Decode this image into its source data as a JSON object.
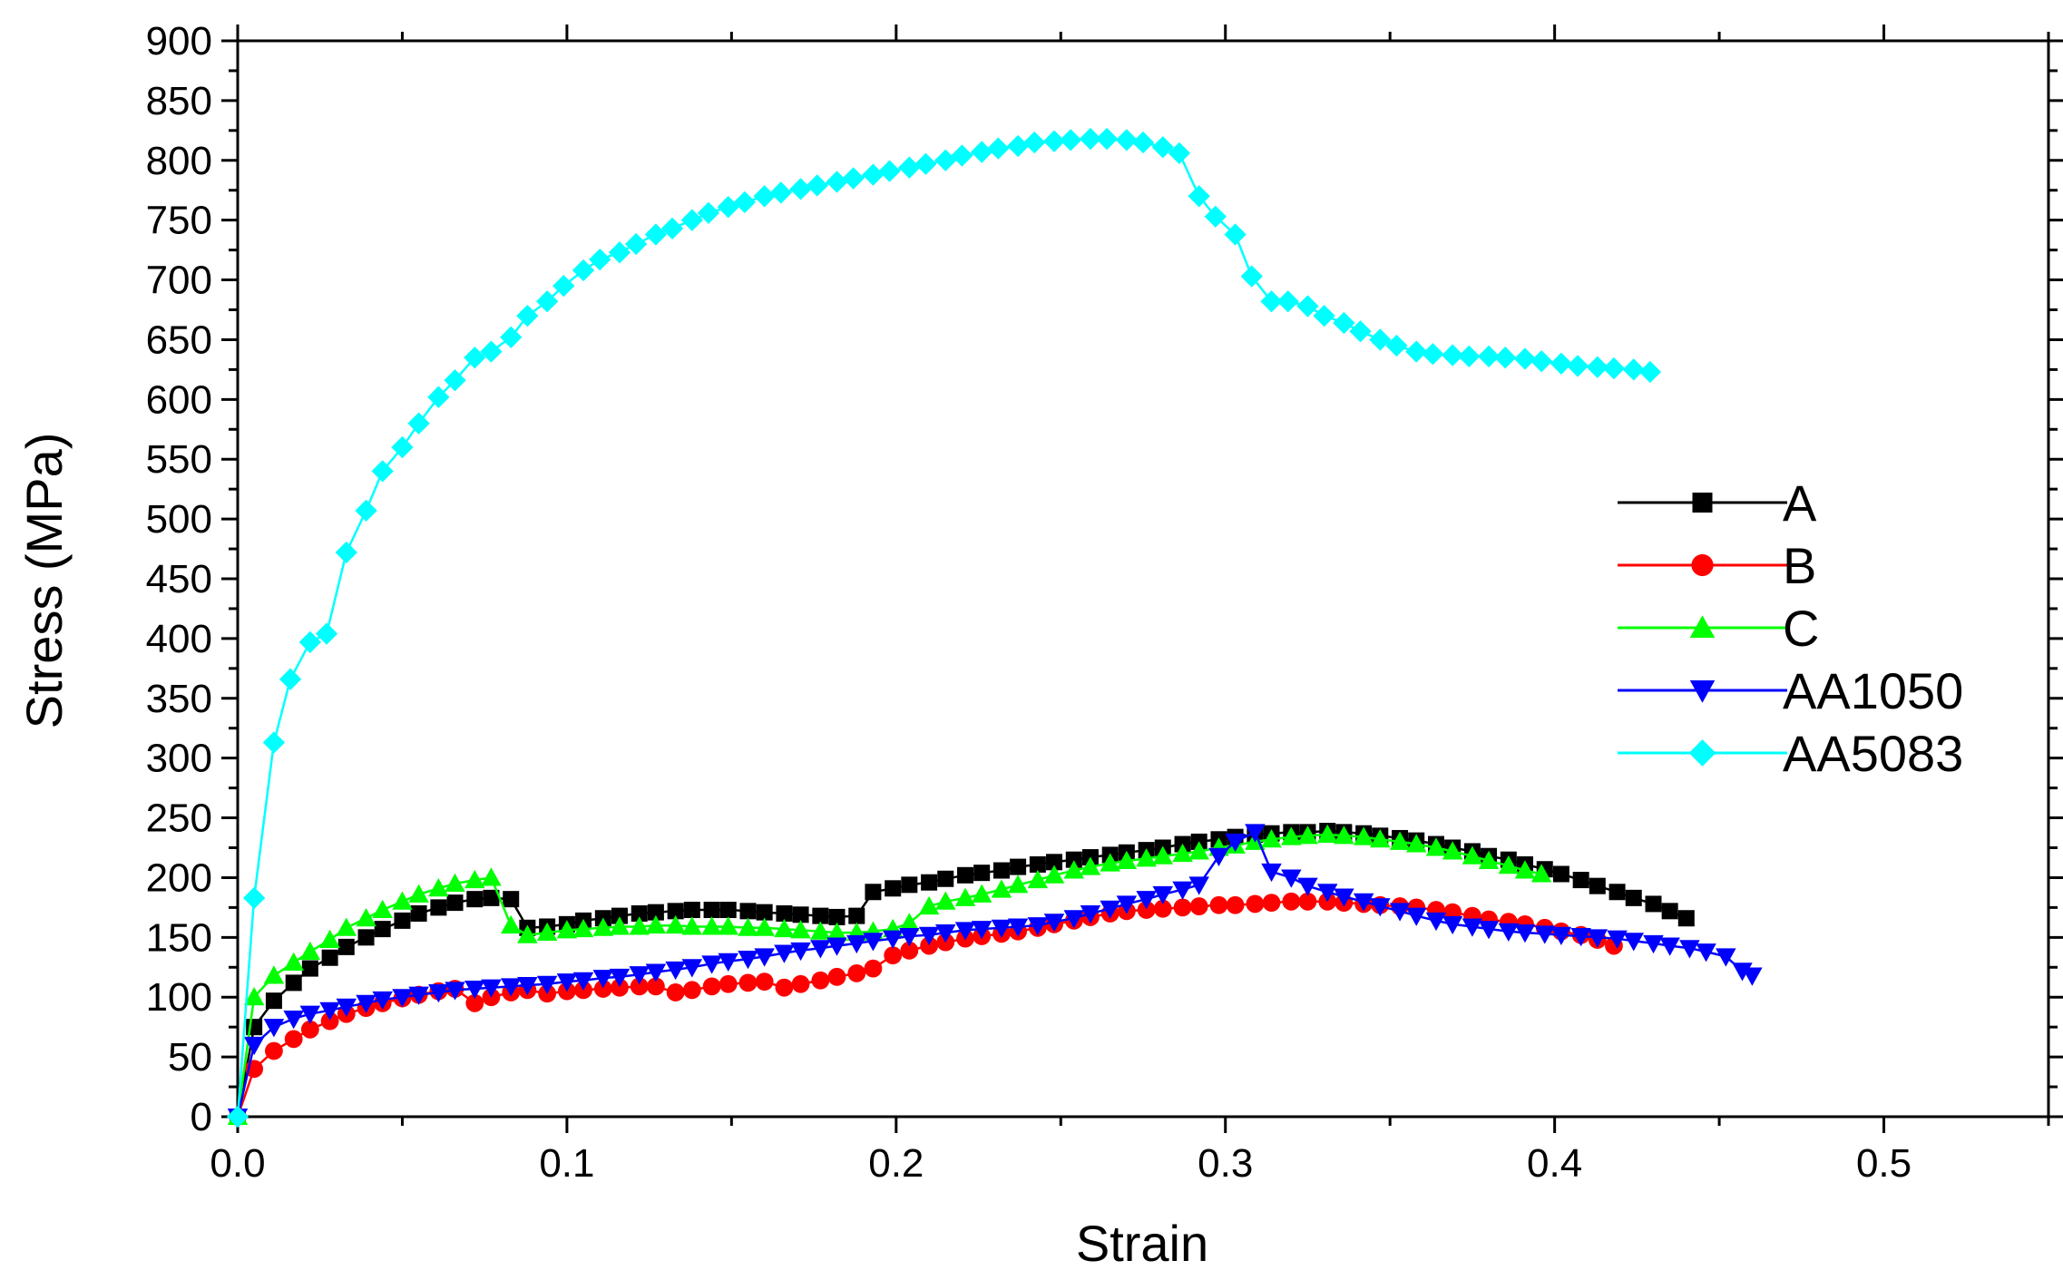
{
  "chart_data": {
    "type": "line",
    "title": "",
    "xlabel": "Strain",
    "ylabel": "Stress (MPa)",
    "xlim": [
      0,
      0.55
    ],
    "ylim": [
      0,
      900
    ],
    "x_ticks": [
      0.0,
      0.1,
      0.2,
      0.3,
      0.4,
      0.5
    ],
    "x_tick_labels": [
      "0.0",
      "0.1",
      "0.2",
      "0.3",
      "0.4",
      "0.5"
    ],
    "y_ticks": [
      0,
      50,
      100,
      150,
      200,
      250,
      300,
      350,
      400,
      450,
      500,
      550,
      600,
      650,
      700,
      750,
      800,
      850,
      900
    ],
    "y_tick_labels": [
      "0",
      "50",
      "100",
      "150",
      "200",
      "250",
      "300",
      "350",
      "400",
      "450",
      "500",
      "550",
      "600",
      "650",
      "700",
      "750",
      "800",
      "850",
      "900"
    ],
    "grid": false,
    "legend_position": "right",
    "series": [
      {
        "name": "A",
        "color": "#000000",
        "marker": "square",
        "x": [
          0,
          0.005,
          0.011,
          0.017,
          0.022,
          0.028,
          0.033,
          0.039,
          0.044,
          0.05,
          0.055,
          0.061,
          0.066,
          0.072,
          0.077,
          0.083,
          0.088,
          0.094,
          0.1,
          0.105,
          0.111,
          0.116,
          0.122,
          0.127,
          0.133,
          0.138,
          0.144,
          0.149,
          0.155,
          0.16,
          0.166,
          0.171,
          0.177,
          0.182,
          0.188,
          0.193,
          0.199,
          0.204,
          0.21,
          0.215,
          0.221,
          0.226,
          0.232,
          0.237,
          0.243,
          0.248,
          0.254,
          0.259,
          0.265,
          0.27,
          0.276,
          0.281,
          0.287,
          0.292,
          0.298,
          0.303,
          0.309,
          0.314,
          0.32,
          0.325,
          0.331,
          0.336,
          0.342,
          0.347,
          0.353,
          0.358,
          0.364,
          0.369,
          0.375,
          0.38,
          0.386,
          0.391,
          0.397,
          0.402,
          0.408,
          0.413,
          0.419,
          0.424,
          0.43,
          0.435,
          0.44
        ],
        "y": [
          0,
          75,
          97,
          112,
          124,
          133,
          142,
          150,
          157,
          164,
          170,
          175,
          179,
          182,
          183,
          182,
          158,
          159,
          161,
          164,
          166,
          168,
          170,
          171,
          172,
          173,
          173,
          173,
          172,
          171,
          170,
          169,
          168,
          167,
          168,
          188,
          191,
          194,
          196,
          199,
          202,
          204,
          206,
          209,
          211,
          213,
          215,
          217,
          219,
          221,
          223,
          225,
          228,
          230,
          232,
          234,
          236,
          237,
          238,
          238,
          239,
          238,
          237,
          235,
          233,
          231,
          228,
          225,
          222,
          218,
          215,
          211,
          207,
          203,
          198,
          193,
          188,
          183,
          178,
          172,
          166
        ]
      },
      {
        "name": "B",
        "color": "#ff0000",
        "marker": "circle",
        "x": [
          0,
          0.005,
          0.011,
          0.017,
          0.022,
          0.028,
          0.033,
          0.039,
          0.044,
          0.05,
          0.055,
          0.061,
          0.066,
          0.072,
          0.077,
          0.083,
          0.088,
          0.094,
          0.1,
          0.105,
          0.111,
          0.116,
          0.122,
          0.127,
          0.133,
          0.138,
          0.144,
          0.149,
          0.155,
          0.16,
          0.166,
          0.171,
          0.177,
          0.182,
          0.188,
          0.193,
          0.199,
          0.204,
          0.21,
          0.215,
          0.221,
          0.226,
          0.232,
          0.237,
          0.243,
          0.248,
          0.254,
          0.259,
          0.265,
          0.27,
          0.276,
          0.281,
          0.287,
          0.292,
          0.298,
          0.303,
          0.309,
          0.314,
          0.32,
          0.325,
          0.331,
          0.336,
          0.342,
          0.347,
          0.353,
          0.358,
          0.364,
          0.369,
          0.375,
          0.38,
          0.386,
          0.391,
          0.397,
          0.402,
          0.408,
          0.413,
          0.418
        ],
        "y": [
          0,
          40,
          55,
          65,
          73,
          80,
          86,
          91,
          95,
          99,
          102,
          105,
          107,
          95,
          100,
          104,
          106,
          103,
          105,
          106,
          107,
          108,
          109,
          109,
          104,
          106,
          109,
          111,
          112,
          113,
          108,
          111,
          114,
          117,
          120,
          124,
          135,
          139,
          143,
          146,
          149,
          151,
          153,
          155,
          158,
          161,
          164,
          167,
          170,
          172,
          173,
          174,
          175,
          176,
          177,
          177,
          178,
          179,
          180,
          180,
          180,
          179,
          178,
          177,
          176,
          175,
          173,
          171,
          168,
          165,
          163,
          161,
          158,
          155,
          152,
          148,
          143
        ]
      },
      {
        "name": "C",
        "color": "#00ff00",
        "marker": "triangle-up",
        "x": [
          0,
          0.005,
          0.011,
          0.017,
          0.022,
          0.028,
          0.033,
          0.039,
          0.044,
          0.05,
          0.055,
          0.061,
          0.066,
          0.072,
          0.077,
          0.083,
          0.088,
          0.094,
          0.1,
          0.105,
          0.111,
          0.116,
          0.122,
          0.127,
          0.133,
          0.138,
          0.144,
          0.149,
          0.155,
          0.16,
          0.166,
          0.171,
          0.177,
          0.182,
          0.188,
          0.193,
          0.199,
          0.204,
          0.21,
          0.215,
          0.221,
          0.226,
          0.232,
          0.237,
          0.243,
          0.248,
          0.254,
          0.259,
          0.265,
          0.27,
          0.276,
          0.281,
          0.287,
          0.292,
          0.298,
          0.303,
          0.309,
          0.314,
          0.32,
          0.325,
          0.331,
          0.336,
          0.342,
          0.347,
          0.353,
          0.358,
          0.364,
          0.369,
          0.375,
          0.38,
          0.386,
          0.391,
          0.396
        ],
        "y": [
          0,
          100,
          118,
          129,
          138,
          148,
          158,
          166,
          173,
          180,
          186,
          191,
          195,
          198,
          200,
          160,
          152,
          154,
          156,
          157,
          158,
          159,
          159,
          160,
          160,
          159,
          159,
          159,
          158,
          158,
          157,
          156,
          155,
          154,
          154,
          155,
          157,
          162,
          176,
          180,
          183,
          186,
          190,
          194,
          198,
          202,
          206,
          209,
          212,
          214,
          216,
          218,
          220,
          222,
          225,
          227,
          230,
          232,
          234,
          235,
          236,
          235,
          234,
          232,
          230,
          228,
          225,
          222,
          218,
          214,
          210,
          206,
          203
        ]
      },
      {
        "name": "AA1050",
        "color": "#0000ff",
        "marker": "triangle-down",
        "x": [
          0,
          0.005,
          0.011,
          0.017,
          0.022,
          0.028,
          0.033,
          0.039,
          0.044,
          0.05,
          0.055,
          0.061,
          0.066,
          0.072,
          0.077,
          0.083,
          0.088,
          0.094,
          0.1,
          0.105,
          0.111,
          0.116,
          0.122,
          0.127,
          0.133,
          0.138,
          0.144,
          0.149,
          0.155,
          0.16,
          0.166,
          0.171,
          0.177,
          0.182,
          0.188,
          0.193,
          0.199,
          0.204,
          0.21,
          0.215,
          0.221,
          0.226,
          0.232,
          0.237,
          0.243,
          0.248,
          0.254,
          0.259,
          0.265,
          0.27,
          0.276,
          0.281,
          0.287,
          0.292,
          0.298,
          0.303,
          0.309,
          0.314,
          0.32,
          0.325,
          0.331,
          0.336,
          0.342,
          0.347,
          0.353,
          0.358,
          0.364,
          0.369,
          0.375,
          0.38,
          0.386,
          0.391,
          0.397,
          0.402,
          0.408,
          0.413,
          0.419,
          0.424,
          0.43,
          0.435,
          0.441,
          0.446,
          0.452,
          0.457,
          0.46
        ],
        "y": [
          0,
          60,
          75,
          82,
          86,
          89,
          92,
          95,
          98,
          100,
          102,
          104,
          106,
          107,
          108,
          109,
          110,
          111,
          113,
          114,
          116,
          117,
          119,
          121,
          123,
          125,
          128,
          130,
          132,
          134,
          137,
          139,
          141,
          143,
          145,
          147,
          149,
          151,
          152,
          154,
          156,
          157,
          158,
          159,
          160,
          163,
          166,
          170,
          174,
          178,
          182,
          186,
          190,
          194,
          218,
          230,
          238,
          205,
          200,
          193,
          188,
          184,
          180,
          176,
          172,
          168,
          164,
          161,
          159,
          157,
          155,
          154,
          153,
          152,
          151,
          150,
          149,
          147,
          145,
          143,
          141,
          138,
          134,
          122,
          118
        ]
      },
      {
        "name": "AA5083",
        "color": "#00ffff",
        "marker": "diamond",
        "x": [
          0,
          0.005,
          0.011,
          0.016,
          0.022,
          0.027,
          0.033,
          0.039,
          0.044,
          0.05,
          0.055,
          0.061,
          0.066,
          0.072,
          0.077,
          0.083,
          0.088,
          0.094,
          0.099,
          0.105,
          0.11,
          0.116,
          0.121,
          0.127,
          0.132,
          0.138,
          0.143,
          0.149,
          0.154,
          0.16,
          0.165,
          0.171,
          0.176,
          0.182,
          0.187,
          0.193,
          0.198,
          0.204,
          0.209,
          0.215,
          0.22,
          0.226,
          0.231,
          0.237,
          0.242,
          0.248,
          0.253,
          0.259,
          0.264,
          0.27,
          0.275,
          0.281,
          0.286,
          0.292,
          0.297,
          0.303,
          0.308,
          0.314,
          0.319,
          0.325,
          0.33,
          0.336,
          0.341,
          0.347,
          0.352,
          0.358,
          0.363,
          0.369,
          0.374,
          0.38,
          0.385,
          0.391,
          0.396,
          0.402,
          0.407,
          0.413,
          0.418,
          0.424,
          0.429
        ],
        "y": [
          0,
          183,
          313,
          366,
          397,
          404,
          472,
          507,
          540,
          560,
          580,
          602,
          616,
          635,
          640,
          652,
          670,
          682,
          695,
          708,
          717,
          723,
          730,
          738,
          743,
          750,
          756,
          761,
          765,
          770,
          773,
          776,
          779,
          782,
          785,
          788,
          791,
          794,
          797,
          800,
          804,
          807,
          810,
          812,
          815,
          816,
          817,
          818,
          818,
          817,
          815,
          811,
          806,
          770,
          753,
          738,
          703,
          682,
          682,
          678,
          670,
          664,
          657,
          650,
          645,
          640,
          638,
          637,
          636,
          636,
          635,
          634,
          632,
          630,
          628,
          627,
          626,
          625,
          623
        ]
      }
    ]
  }
}
